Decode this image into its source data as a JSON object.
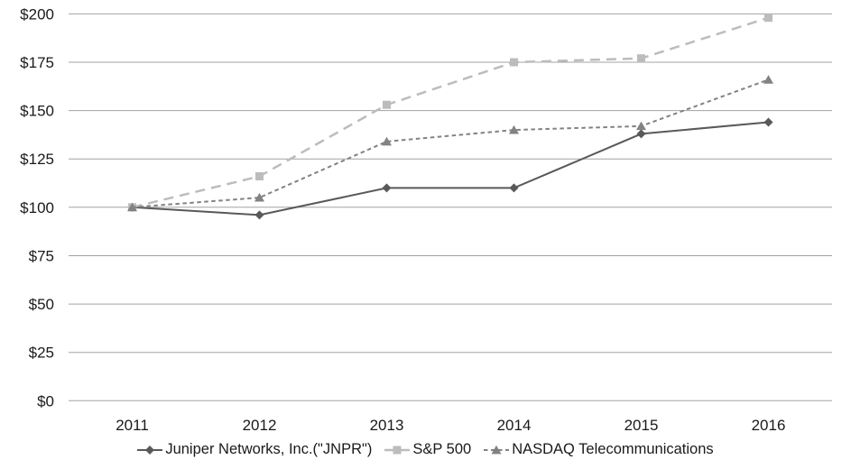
{
  "chart_data": {
    "type": "line",
    "title": "",
    "xlabel": "",
    "ylabel": "",
    "categories": [
      "2011",
      "2012",
      "2013",
      "2014",
      "2015",
      "2016"
    ],
    "series": [
      {
        "id": "jnpr",
        "name": "Juniper Networks, Inc.(\"JNPR\")",
        "values": [
          100,
          96,
          110,
          110,
          138,
          144
        ],
        "color": "#595959",
        "dash": "",
        "line_width": 2,
        "marker": "diamond"
      },
      {
        "id": "sp500",
        "name": "S&P 500",
        "values": [
          100,
          116,
          153,
          175,
          177,
          198
        ],
        "color": "#bcbcbc",
        "dash": "11 7",
        "line_width": 2.5,
        "marker": "square"
      },
      {
        "id": "nasdaq-telecom",
        "name": "NASDAQ Telecommunications",
        "values": [
          100,
          105,
          134,
          140,
          142,
          166
        ],
        "color": "#828282",
        "dash": "4.5 3.5",
        "line_width": 2,
        "marker": "triangle"
      }
    ],
    "ylim": [
      0,
      200
    ],
    "y_ticks": [
      {
        "value": 0,
        "label": "$0"
      },
      {
        "value": 25,
        "label": "$25"
      },
      {
        "value": 50,
        "label": "$50"
      },
      {
        "value": 75,
        "label": "$75"
      },
      {
        "value": 100,
        "label": "$100"
      },
      {
        "value": 125,
        "label": "$125"
      },
      {
        "value": 150,
        "label": "$150"
      },
      {
        "value": 175,
        "label": "$175"
      },
      {
        "value": 200,
        "label": "$200"
      }
    ],
    "grid": true,
    "legend_position": "bottom"
  },
  "colors": {
    "grid": "#a3a3a3",
    "text": "#1a1a1a",
    "background": "#ffffff"
  }
}
